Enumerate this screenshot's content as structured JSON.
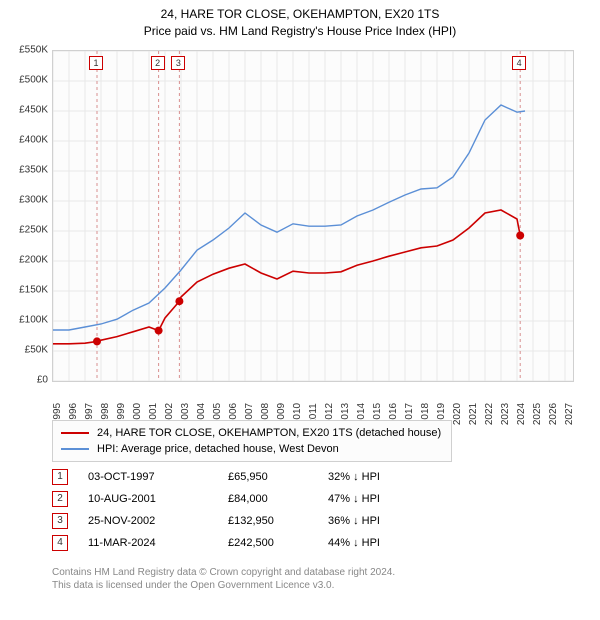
{
  "title": {
    "line1": "24, HARE TOR CLOSE, OKEHAMPTON, EX20 1TS",
    "line2": "Price paid vs. HM Land Registry's House Price Index (HPI)",
    "fontsize": 12,
    "color": "#000000"
  },
  "chart": {
    "type": "line",
    "background_color": "#fcfcfc",
    "border_color": "#d0d0d0",
    "grid_color": "#e8e8e8",
    "x": {
      "min": 1995,
      "max": 2027.5,
      "ticks": [
        1995,
        1996,
        1997,
        1998,
        1999,
        2000,
        2001,
        2002,
        2003,
        2004,
        2005,
        2006,
        2007,
        2008,
        2009,
        2010,
        2011,
        2012,
        2013,
        2014,
        2015,
        2016,
        2017,
        2018,
        2019,
        2020,
        2021,
        2022,
        2023,
        2024,
        2025,
        2026,
        2027
      ],
      "label_fontsize": 10
    },
    "y": {
      "min": 0,
      "max": 550000,
      "ticks": [
        0,
        50000,
        100000,
        150000,
        200000,
        250000,
        300000,
        350000,
        400000,
        450000,
        500000,
        550000
      ],
      "tick_labels": [
        "£0",
        "£50K",
        "£100K",
        "£150K",
        "£200K",
        "£250K",
        "£300K",
        "£350K",
        "£400K",
        "£450K",
        "£500K",
        "£550K"
      ],
      "label_fontsize": 10
    },
    "series": [
      {
        "name": "property",
        "label": "24, HARE TOR CLOSE, OKEHAMPTON, EX20 1TS (detached house)",
        "color": "#cc0000",
        "line_width": 1.6,
        "points": [
          [
            1995,
            62000
          ],
          [
            1996,
            62000
          ],
          [
            1997,
            63000
          ],
          [
            1997.75,
            65950
          ],
          [
            1998,
            68000
          ],
          [
            1999,
            74000
          ],
          [
            2000,
            82000
          ],
          [
            2001,
            90000
          ],
          [
            2001.6,
            84000
          ],
          [
            2002,
            105000
          ],
          [
            2002.9,
            132950
          ],
          [
            2003,
            140000
          ],
          [
            2004,
            165000
          ],
          [
            2005,
            178000
          ],
          [
            2006,
            188000
          ],
          [
            2007,
            195000
          ],
          [
            2008,
            180000
          ],
          [
            2009,
            170000
          ],
          [
            2010,
            183000
          ],
          [
            2011,
            180000
          ],
          [
            2012,
            180000
          ],
          [
            2013,
            182000
          ],
          [
            2014,
            193000
          ],
          [
            2015,
            200000
          ],
          [
            2016,
            208000
          ],
          [
            2017,
            215000
          ],
          [
            2018,
            222000
          ],
          [
            2019,
            225000
          ],
          [
            2020,
            235000
          ],
          [
            2021,
            255000
          ],
          [
            2022,
            280000
          ],
          [
            2023,
            285000
          ],
          [
            2024,
            270000
          ],
          [
            2024.2,
            242500
          ]
        ],
        "markers": [
          {
            "x": 1997.75,
            "y": 65950
          },
          {
            "x": 2001.6,
            "y": 84000
          },
          {
            "x": 2002.9,
            "y": 132950
          },
          {
            "x": 2024.2,
            "y": 242500
          }
        ]
      },
      {
        "name": "hpi",
        "label": "HPI: Average price, detached house, West Devon",
        "color": "#5b8fd6",
        "line_width": 1.4,
        "points": [
          [
            1995,
            85000
          ],
          [
            1996,
            85000
          ],
          [
            1997,
            90000
          ],
          [
            1998,
            95000
          ],
          [
            1999,
            103000
          ],
          [
            2000,
            118000
          ],
          [
            2001,
            130000
          ],
          [
            2002,
            155000
          ],
          [
            2003,
            185000
          ],
          [
            2004,
            218000
          ],
          [
            2005,
            235000
          ],
          [
            2006,
            255000
          ],
          [
            2007,
            280000
          ],
          [
            2008,
            260000
          ],
          [
            2009,
            248000
          ],
          [
            2010,
            262000
          ],
          [
            2011,
            258000
          ],
          [
            2012,
            258000
          ],
          [
            2013,
            260000
          ],
          [
            2014,
            275000
          ],
          [
            2015,
            285000
          ],
          [
            2016,
            298000
          ],
          [
            2017,
            310000
          ],
          [
            2018,
            320000
          ],
          [
            2019,
            322000
          ],
          [
            2020,
            340000
          ],
          [
            2021,
            380000
          ],
          [
            2022,
            435000
          ],
          [
            2023,
            460000
          ],
          [
            2024,
            448000
          ],
          [
            2024.5,
            450000
          ]
        ]
      }
    ],
    "event_lines": [
      {
        "x": 1997.75,
        "label": "1",
        "color": "#cc0000"
      },
      {
        "x": 2001.6,
        "label": "2",
        "color": "#cc0000"
      },
      {
        "x": 2002.9,
        "label": "3",
        "color": "#cc0000"
      },
      {
        "x": 2024.2,
        "label": "4",
        "color": "#cc0000"
      }
    ],
    "event_line_style": "dashed",
    "event_line_color": "#d89090"
  },
  "legend": {
    "border_color": "#d0d0d0",
    "background": "#fcfcfc",
    "fontsize": 11
  },
  "events_table": {
    "fontsize": 11,
    "marker_border": "#cc0000",
    "rows": [
      {
        "n": "1",
        "date": "03-OCT-1997",
        "price": "£65,950",
        "pct": "32% ↓ HPI"
      },
      {
        "n": "2",
        "date": "10-AUG-2001",
        "price": "£84,000",
        "pct": "47% ↓ HPI"
      },
      {
        "n": "3",
        "date": "25-NOV-2002",
        "price": "£132,950",
        "pct": "36% ↓ HPI"
      },
      {
        "n": "4",
        "date": "11-MAR-2024",
        "price": "£242,500",
        "pct": "44% ↓ HPI"
      }
    ]
  },
  "footer": {
    "line1": "Contains HM Land Registry data © Crown copyright and database right 2024.",
    "line2": "This data is licensed under the Open Government Licence v3.0.",
    "color": "#888888",
    "fontsize": 10
  }
}
